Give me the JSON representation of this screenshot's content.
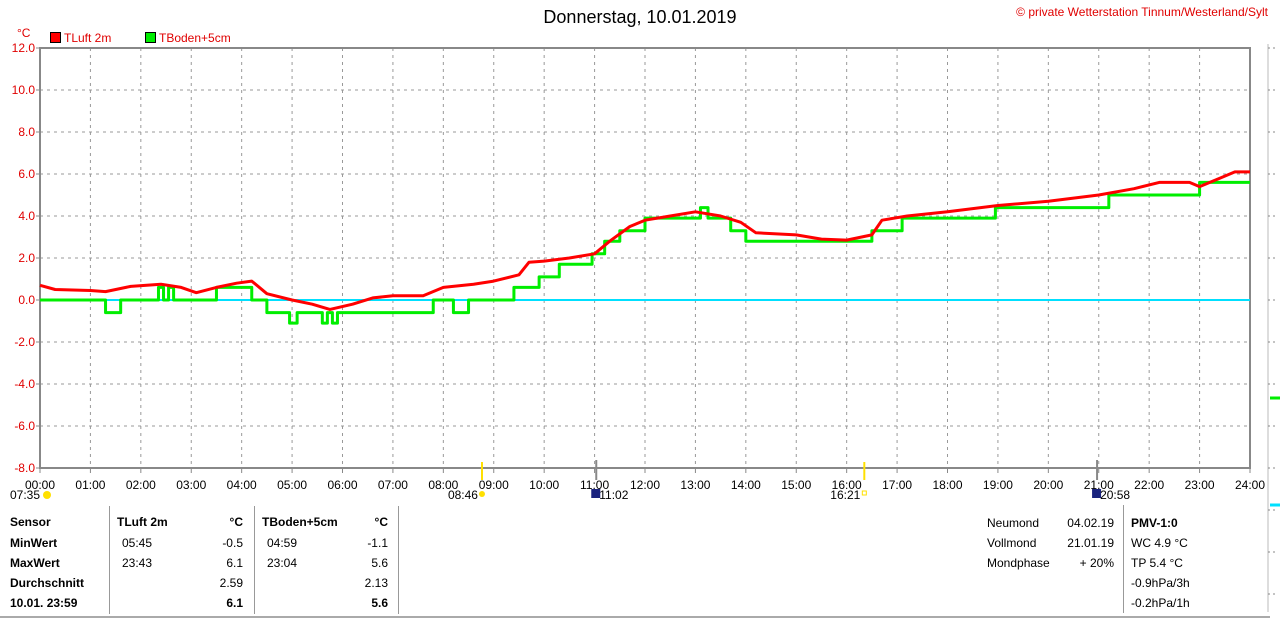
{
  "title": "Donnerstag, 10.01.2019",
  "credit": "© private Wetterstation Tinnum/Westerland/Sylt",
  "chart_data": {
    "type": "line",
    "title": "Donnerstag, 10.01.2019",
    "ylabel": "°C",
    "ylim": [
      -8,
      12
    ],
    "xlim": [
      0,
      24
    ],
    "grid": true,
    "legend": "top-left",
    "yticks": [
      "12.0",
      "10.0",
      "8.0",
      "6.0",
      "4.0",
      "2.0",
      "0.0",
      "-2.0",
      "-4.0",
      "-6.0",
      "-8.0"
    ],
    "xticks": [
      "00:00",
      "01:00",
      "02:00",
      "03:00",
      "04:00",
      "05:00",
      "06:00",
      "07:00",
      "08:00",
      "09:00",
      "10:00",
      "11:00",
      "12:00",
      "13:00",
      "14:00",
      "15:00",
      "16:00",
      "17:00",
      "18:00",
      "19:00",
      "20:00",
      "21:00",
      "22:00",
      "23:00",
      "24:00"
    ],
    "series": [
      {
        "name": "TLuft 2m",
        "color": "#ff0000",
        "points": [
          [
            0,
            0.7
          ],
          [
            0.3,
            0.5
          ],
          [
            1,
            0.45
          ],
          [
            1.3,
            0.4
          ],
          [
            1.8,
            0.65
          ],
          [
            2.4,
            0.75
          ],
          [
            2.8,
            0.6
          ],
          [
            3.1,
            0.35
          ],
          [
            3.5,
            0.6
          ],
          [
            3.9,
            0.8
          ],
          [
            4.2,
            0.9
          ],
          [
            4.5,
            0.3
          ],
          [
            5,
            0
          ],
          [
            5.4,
            -0.2
          ],
          [
            5.75,
            -0.45
          ],
          [
            6.2,
            -0.2
          ],
          [
            6.6,
            0.1
          ],
          [
            7,
            0.2
          ],
          [
            7.6,
            0.2
          ],
          [
            8,
            0.6
          ],
          [
            8.6,
            0.75
          ],
          [
            9,
            0.9
          ],
          [
            9.5,
            1.2
          ],
          [
            9.7,
            1.8
          ],
          [
            10,
            1.85
          ],
          [
            10.5,
            2.0
          ],
          [
            11,
            2.2
          ],
          [
            11.3,
            2.8
          ],
          [
            11.7,
            3.5
          ],
          [
            12,
            3.8
          ],
          [
            12.5,
            4.0
          ],
          [
            13,
            4.2
          ],
          [
            13.5,
            4.0
          ],
          [
            13.9,
            3.7
          ],
          [
            14.2,
            3.2
          ],
          [
            15,
            3.1
          ],
          [
            15.5,
            2.9
          ],
          [
            16,
            2.85
          ],
          [
            16.5,
            3.1
          ],
          [
            16.7,
            3.8
          ],
          [
            17.2,
            4.0
          ],
          [
            18,
            4.2
          ],
          [
            19,
            4.5
          ],
          [
            20,
            4.7
          ],
          [
            21,
            5.0
          ],
          [
            21.7,
            5.3
          ],
          [
            22.2,
            5.6
          ],
          [
            22.8,
            5.6
          ],
          [
            23,
            5.4
          ],
          [
            23.4,
            5.8
          ],
          [
            23.7,
            6.1
          ],
          [
            24,
            6.1
          ]
        ]
      },
      {
        "name": "TBoden+5cm",
        "color": "#00ee00",
        "points": [
          [
            0,
            0
          ],
          [
            1.3,
            0
          ],
          [
            1.3,
            -0.6
          ],
          [
            1.6,
            -0.6
          ],
          [
            1.6,
            0
          ],
          [
            2.35,
            0
          ],
          [
            2.35,
            0.6
          ],
          [
            2.45,
            0.6
          ],
          [
            2.45,
            0
          ],
          [
            2.55,
            0
          ],
          [
            2.55,
            0.6
          ],
          [
            2.65,
            0.6
          ],
          [
            2.65,
            0
          ],
          [
            3.5,
            0
          ],
          [
            3.5,
            0.6
          ],
          [
            4.2,
            0.6
          ],
          [
            4.2,
            0
          ],
          [
            4.5,
            0
          ],
          [
            4.5,
            -0.6
          ],
          [
            4.95,
            -0.6
          ],
          [
            4.95,
            -1.1
          ],
          [
            5.1,
            -1.1
          ],
          [
            5.1,
            -0.6
          ],
          [
            5.6,
            -0.6
          ],
          [
            5.6,
            -1.1
          ],
          [
            5.7,
            -1.1
          ],
          [
            5.7,
            -0.6
          ],
          [
            5.8,
            -0.6
          ],
          [
            5.8,
            -1.1
          ],
          [
            5.9,
            -1.1
          ],
          [
            5.9,
            -0.6
          ],
          [
            7.8,
            -0.6
          ],
          [
            7.8,
            0
          ],
          [
            8.2,
            0
          ],
          [
            8.2,
            -0.6
          ],
          [
            8.5,
            -0.6
          ],
          [
            8.5,
            0
          ],
          [
            9.4,
            0
          ],
          [
            9.4,
            0.6
          ],
          [
            9.9,
            0.6
          ],
          [
            9.9,
            1.1
          ],
          [
            10.3,
            1.1
          ],
          [
            10.3,
            1.7
          ],
          [
            10.95,
            1.7
          ],
          [
            10.95,
            2.2
          ],
          [
            11.2,
            2.2
          ],
          [
            11.2,
            2.8
          ],
          [
            11.5,
            2.8
          ],
          [
            11.5,
            3.3
          ],
          [
            12,
            3.3
          ],
          [
            12,
            3.9
          ],
          [
            13.1,
            3.9
          ],
          [
            13.1,
            4.4
          ],
          [
            13.25,
            4.4
          ],
          [
            13.25,
            3.9
          ],
          [
            13.7,
            3.9
          ],
          [
            13.7,
            3.3
          ],
          [
            14.0,
            3.3
          ],
          [
            14.0,
            2.8
          ],
          [
            16.5,
            2.8
          ],
          [
            16.5,
            3.3
          ],
          [
            17.1,
            3.3
          ],
          [
            17.1,
            3.9
          ],
          [
            18.95,
            3.9
          ],
          [
            18.95,
            4.4
          ],
          [
            19.1,
            4.4
          ],
          [
            19.1,
            4.4
          ],
          [
            21.2,
            4.4
          ],
          [
            21.2,
            5.0
          ],
          [
            23.0,
            5.0
          ],
          [
            23.0,
            5.6
          ],
          [
            24,
            5.6
          ]
        ]
      }
    ],
    "reference_line": {
      "value": 0,
      "color": "#00e0ff"
    },
    "annotations": [
      {
        "time": "07:35",
        "label": "07:35"
      },
      {
        "time": "08:46",
        "label": "08:46"
      },
      {
        "time": "11:02",
        "label": "11:02"
      },
      {
        "time": "16:21",
        "label": "16:21"
      },
      {
        "time": "20:58",
        "label": "20:58"
      }
    ]
  },
  "stats": {
    "headers": [
      "Sensor",
      "TLuft 2m",
      "°C",
      "TBoden+5cm",
      "°C"
    ],
    "rows": [
      {
        "label": "MinWert",
        "t1": "05:45",
        "v1": "-0.5",
        "t2": "04:59",
        "v2": "-1.1"
      },
      {
        "label": "MaxWert",
        "t1": "23:43",
        "v1": "6.1",
        "t2": "23:04",
        "v2": "5.6"
      },
      {
        "label": "Durchschnitt",
        "t1": "",
        "v1": "2.59",
        "t2": "",
        "v2": "2.13"
      },
      {
        "label": "10.01. 23:59",
        "t1": "",
        "v1": "6.1",
        "t2": "",
        "v2": "5.6"
      }
    ]
  },
  "moon": [
    {
      "label": "Neumond",
      "value": "04.02.19"
    },
    {
      "label": "Vollmond",
      "value": "21.01.19"
    },
    {
      "label": "Mondphase",
      "value": "+ 20%"
    }
  ],
  "extra": {
    "title": "PMV-1:0",
    "lines": [
      "WC 4.9 °C",
      "TP 5.4 °C",
      "-0.9hPa/3h",
      "-0.2hPa/1h"
    ]
  }
}
